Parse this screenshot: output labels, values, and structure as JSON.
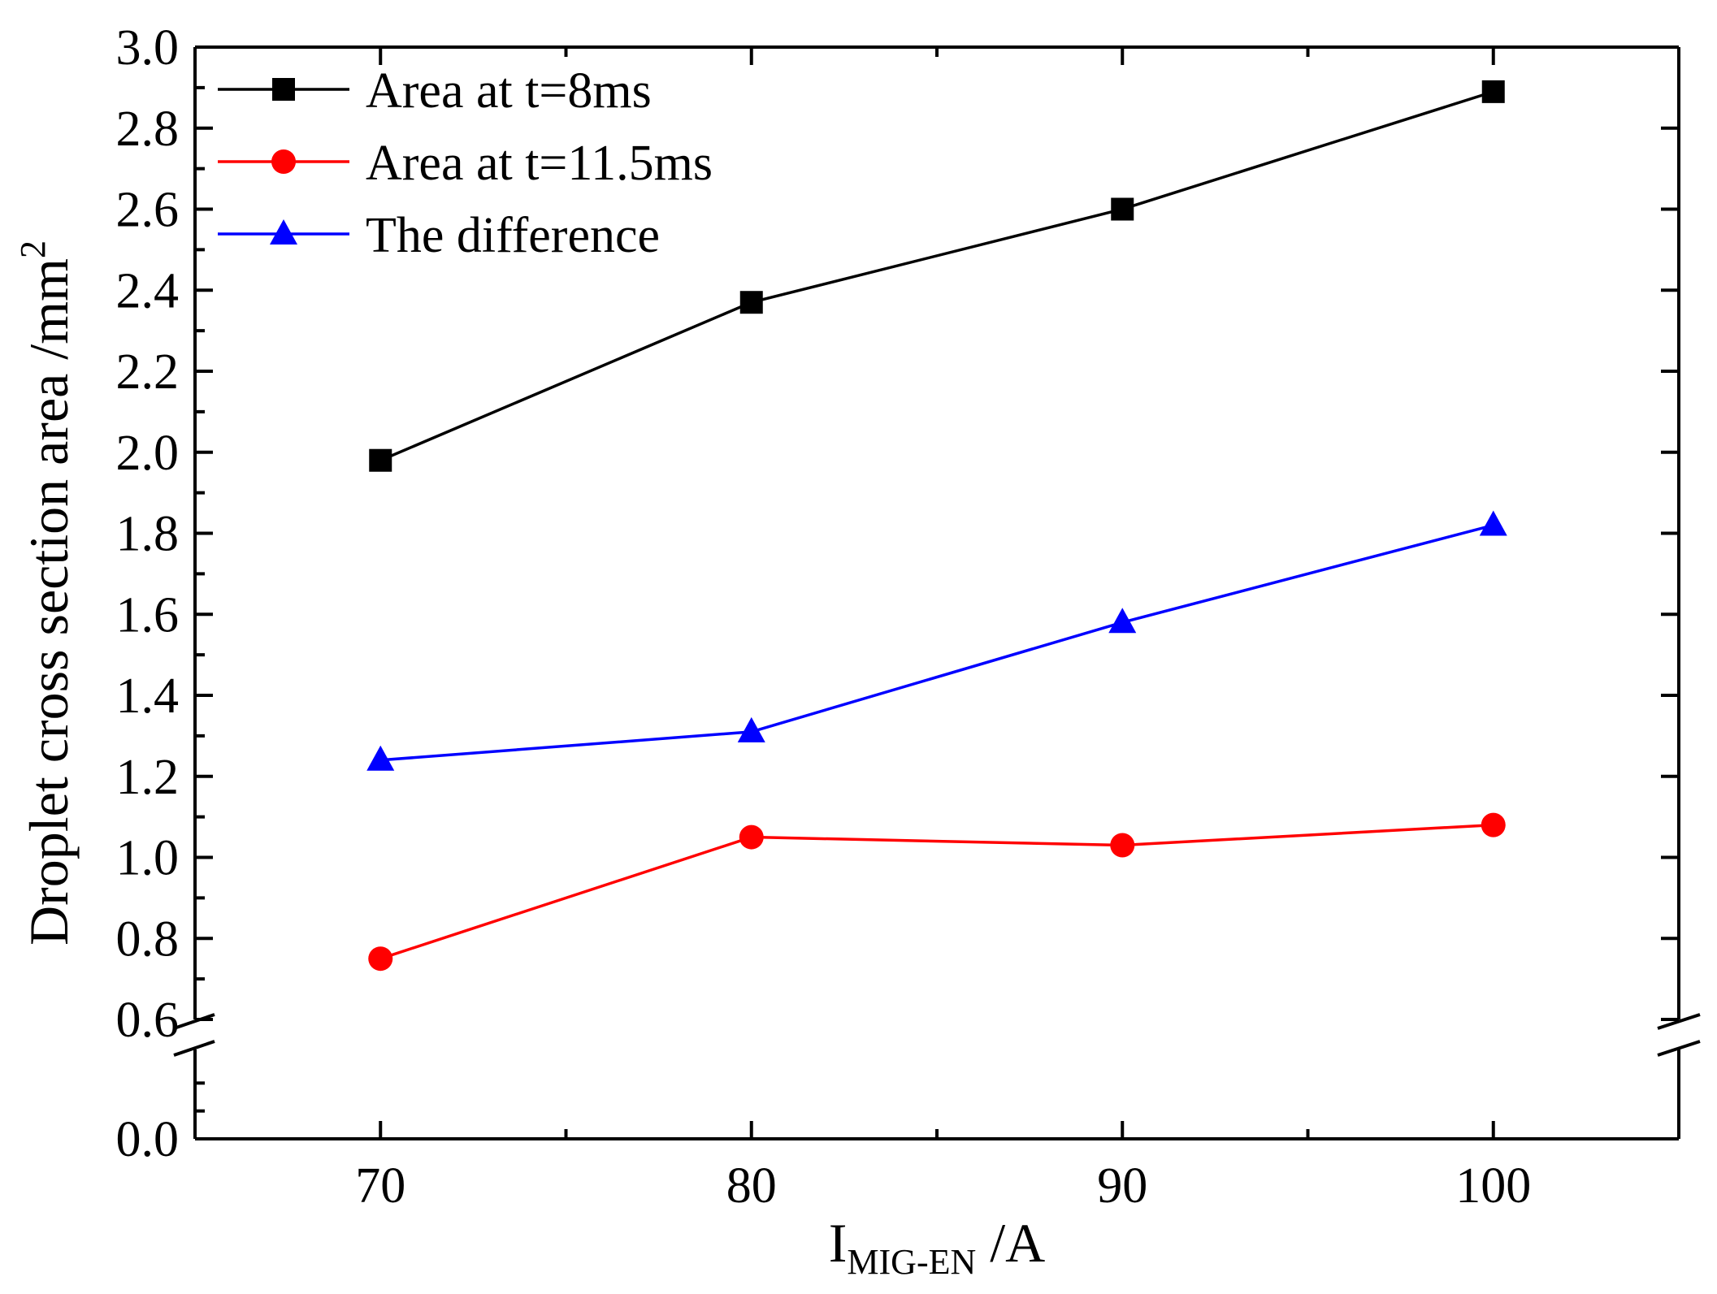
{
  "chart_data": {
    "type": "line",
    "title": "",
    "x": [
      70,
      80,
      90,
      100
    ],
    "xlim": [
      65,
      105
    ],
    "x_ticks": [
      "70",
      "80",
      "90",
      "100"
    ],
    "xlabel": {
      "main": "I",
      "subscript": "MIG-EN",
      "unit": " /A"
    },
    "ylabel": {
      "main": "Droplet cross section area /mm",
      "superscript": "2"
    },
    "y_ticks_upper": [
      "0.6",
      "0.8",
      "1.0",
      "1.2",
      "1.4",
      "1.6",
      "1.8",
      "2.0",
      "2.2",
      "2.4",
      "2.6",
      "2.8",
      "3.0"
    ],
    "y_ticks_lower": [
      "0.0"
    ],
    "ylim_upper": [
      0.6,
      3.0
    ],
    "ylim_lower": [
      0.0,
      0.3
    ],
    "axis_break": "y-axis between 0.0 and 0.6",
    "legend_position": "top-left",
    "series": [
      {
        "name": "Area at t=8ms",
        "values": [
          1.98,
          2.37,
          2.6,
          2.89
        ],
        "color": "#000000",
        "marker": "square"
      },
      {
        "name": "Area at t=11.5ms",
        "values": [
          0.75,
          1.05,
          1.03,
          1.08
        ],
        "color": "#ff0000",
        "marker": "circle"
      },
      {
        "name": "The difference",
        "values": [
          1.24,
          1.31,
          1.58,
          1.82
        ],
        "color": "#0000ff",
        "marker": "triangle"
      }
    ]
  }
}
